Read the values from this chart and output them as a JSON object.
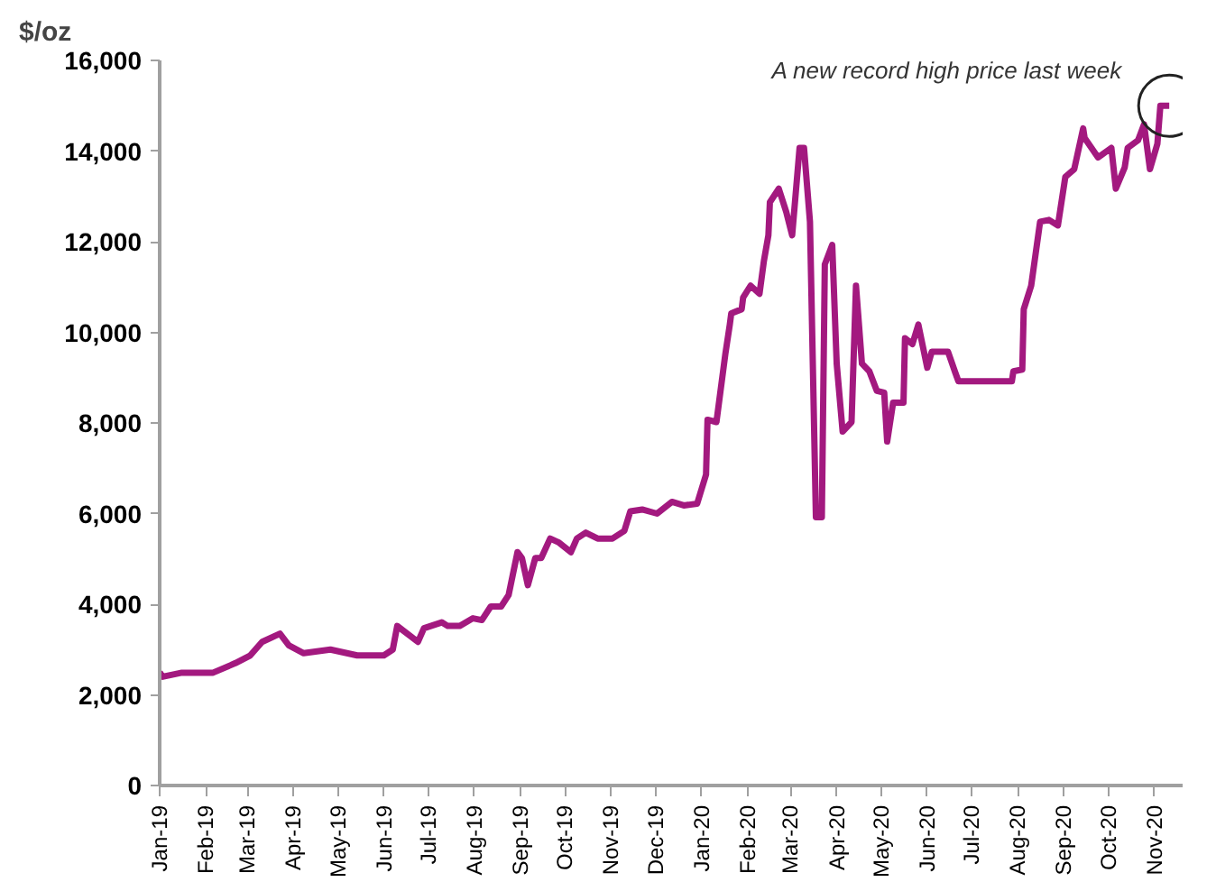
{
  "chart_data": {
    "type": "line",
    "ylabel": "$/oz",
    "annotations": [
      {
        "text": "A new record high price last week",
        "x": "2020-11-11",
        "y": 15000
      }
    ],
    "x": [
      "2019-01-01",
      "2019-01-03",
      "2019-01-16",
      "2019-02-06",
      "2019-02-21",
      "2019-03-03",
      "2019-03-11",
      "2019-03-23",
      "2019-03-29",
      "2019-04-08",
      "2019-04-26",
      "2019-05-14",
      "2019-06-01",
      "2019-06-07",
      "2019-06-10",
      "2019-06-24",
      "2019-06-28",
      "2019-07-10",
      "2019-07-14",
      "2019-07-22",
      "2019-07-31",
      "2019-08-06",
      "2019-08-12",
      "2019-08-19",
      "2019-08-24",
      "2019-08-30",
      "2019-09-02",
      "2019-09-06",
      "2019-09-11",
      "2019-09-15",
      "2019-09-21",
      "2019-09-27",
      "2019-10-05",
      "2019-10-09",
      "2019-10-15",
      "2019-10-23",
      "2019-11-02",
      "2019-11-10",
      "2019-11-14",
      "2019-11-22",
      "2019-12-02",
      "2019-12-12",
      "2019-12-20",
      "2019-12-29",
      "2020-01-04",
      "2020-01-05",
      "2020-01-11",
      "2020-01-17",
      "2020-01-20",
      "2020-01-21",
      "2020-01-28",
      "2020-01-29",
      "2020-02-03",
      "2020-02-09",
      "2020-02-12",
      "2020-02-15",
      "2020-02-16",
      "2020-02-22",
      "2020-02-27",
      "2020-03-02",
      "2020-03-07",
      "2020-03-10",
      "2020-03-14",
      "2020-03-18",
      "2020-03-22",
      "2020-03-24",
      "2020-03-29",
      "2020-04-01",
      "2020-04-05",
      "2020-04-11",
      "2020-04-14",
      "2020-04-18",
      "2020-04-23",
      "2020-04-28",
      "2020-05-03",
      "2020-05-05",
      "2020-05-09",
      "2020-05-16",
      "2020-05-17",
      "2020-05-22",
      "2020-05-26",
      "2020-06-01",
      "2020-06-04",
      "2020-06-15",
      "2020-06-20",
      "2020-06-22",
      "2020-07-28",
      "2020-07-29",
      "2020-08-04",
      "2020-08-05",
      "2020-08-10",
      "2020-08-16",
      "2020-08-22",
      "2020-08-28",
      "2020-09-02",
      "2020-09-08",
      "2020-09-14",
      "2020-09-15",
      "2020-09-24",
      "2020-10-03",
      "2020-10-06",
      "2020-10-12",
      "2020-10-14",
      "2020-10-21",
      "2020-10-25",
      "2020-10-29",
      "2020-11-03",
      "2020-11-05",
      "2020-11-11"
    ],
    "series": [
      {
        "color": "#a3197f",
        "values": [
          2500,
          2400,
          2490,
          2490,
          2700,
          2870,
          3170,
          3350,
          3090,
          2920,
          3000,
          2870,
          2870,
          3000,
          3520,
          3170,
          3470,
          3600,
          3520,
          3520,
          3690,
          3650,
          3950,
          3950,
          4200,
          5150,
          5020,
          4420,
          5020,
          5020,
          5450,
          5360,
          5150,
          5450,
          5580,
          5450,
          5450,
          5620,
          6050,
          6090,
          6000,
          6260,
          6180,
          6220,
          6860,
          8070,
          8020,
          9520,
          10170,
          10420,
          10510,
          10770,
          11030,
          10850,
          11580,
          12140,
          12870,
          13170,
          12660,
          12140,
          14070,
          14070,
          12440,
          5920,
          5920,
          11500,
          11930,
          9310,
          7810,
          8020,
          11030,
          9310,
          9140,
          8710,
          8670,
          7590,
          8450,
          8450,
          9870,
          9740,
          10170,
          9220,
          9570,
          9570,
          9100,
          8920,
          8920,
          9140,
          9180,
          10510,
          11030,
          12440,
          12480,
          12360,
          13430,
          13600,
          14500,
          14290,
          13860,
          14070,
          13170,
          13640,
          14070,
          14240,
          14590,
          13600,
          14160,
          15000,
          15000
        ]
      }
    ],
    "xlim": [
      "2019-01-01",
      "2020-11-20"
    ],
    "xticks": [
      {
        "value": "2019-01-01",
        "label": "Jan-19"
      },
      {
        "value": "2019-02-01",
        "label": "Feb-19"
      },
      {
        "value": "2019-03-01",
        "label": "Mar-19"
      },
      {
        "value": "2019-04-01",
        "label": "Apr-19"
      },
      {
        "value": "2019-05-01",
        "label": "May-19"
      },
      {
        "value": "2019-06-01",
        "label": "Jun-19"
      },
      {
        "value": "2019-07-01",
        "label": "Jul-19"
      },
      {
        "value": "2019-08-01",
        "label": "Aug-19"
      },
      {
        "value": "2019-09-01",
        "label": "Sep-19"
      },
      {
        "value": "2019-10-01",
        "label": "Oct-19"
      },
      {
        "value": "2019-11-01",
        "label": "Nov-19"
      },
      {
        "value": "2019-12-01",
        "label": "Dec-19"
      },
      {
        "value": "2020-01-01",
        "label": "Jan-20"
      },
      {
        "value": "2020-02-01",
        "label": "Feb-20"
      },
      {
        "value": "2020-03-01",
        "label": "Mar-20"
      },
      {
        "value": "2020-04-01",
        "label": "Apr-20"
      },
      {
        "value": "2020-05-01",
        "label": "May-20"
      },
      {
        "value": "2020-06-01",
        "label": "Jun-20"
      },
      {
        "value": "2020-07-01",
        "label": "Jul-20"
      },
      {
        "value": "2020-08-01",
        "label": "Aug-20"
      },
      {
        "value": "2020-09-01",
        "label": "Sep-20"
      },
      {
        "value": "2020-10-01",
        "label": "Oct-20"
      },
      {
        "value": "2020-11-01",
        "label": "Nov-20"
      }
    ],
    "ylim": [
      0,
      16000
    ],
    "yticks": [
      {
        "value": 0,
        "label": "0"
      },
      {
        "value": 2000,
        "label": "2,000"
      },
      {
        "value": 4000,
        "label": "4,000"
      },
      {
        "value": 6000,
        "label": "6,000"
      },
      {
        "value": 8000,
        "label": "8,000"
      },
      {
        "value": 10000,
        "label": "10,000"
      },
      {
        "value": 12000,
        "label": "12,000"
      },
      {
        "value": 14000,
        "label": "14,000"
      },
      {
        "value": 16000,
        "label": "16,000"
      }
    ],
    "grid": false,
    "marker": "none",
    "line_style": "solid"
  }
}
